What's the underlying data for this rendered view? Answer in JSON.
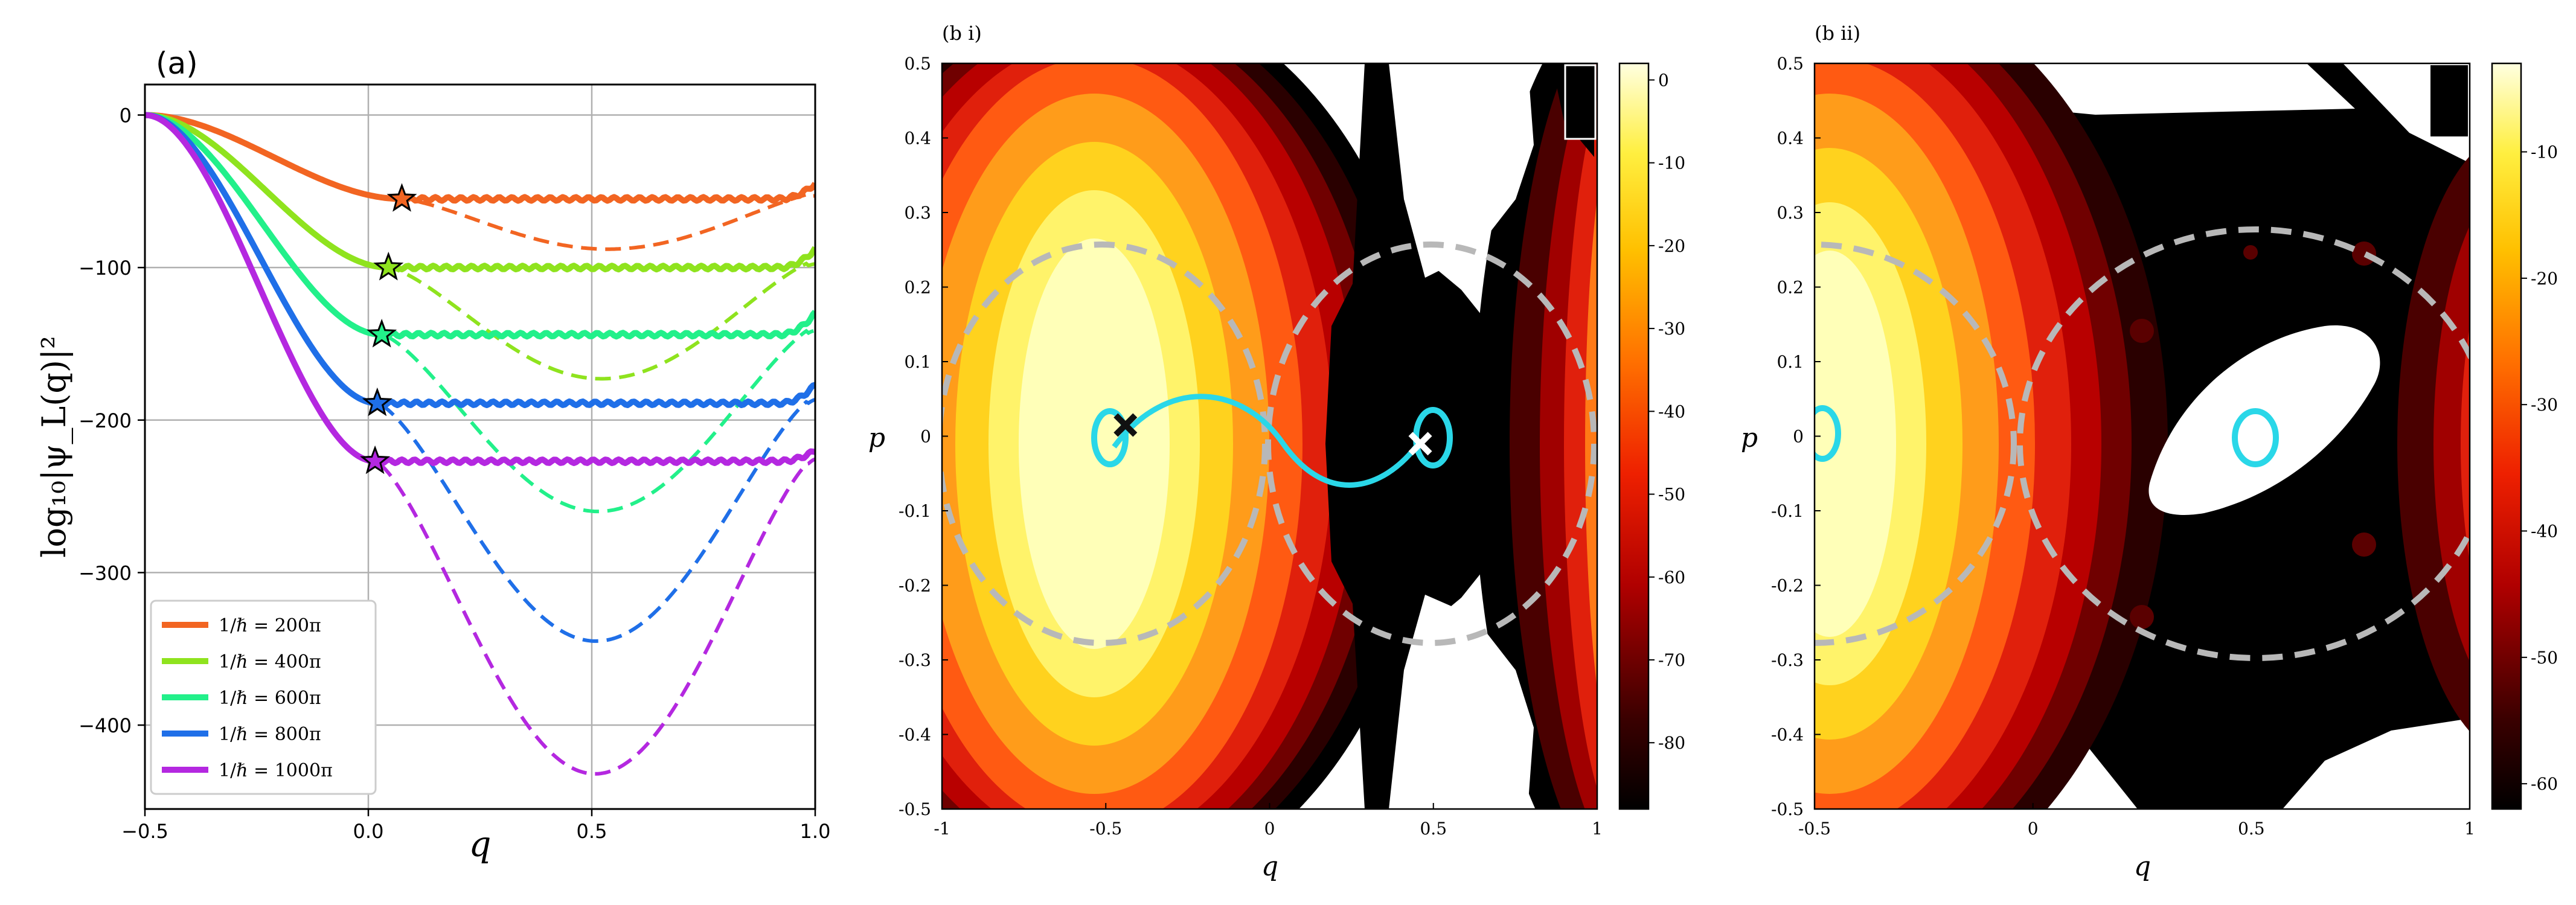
{
  "chart_data": [
    {
      "type": "line",
      "panel_label": "(a)",
      "xlabel": "q",
      "ylabel": "log₁₀|ψ_L(q)|²",
      "xlim": [
        -0.5,
        1.0
      ],
      "ylim": [
        -455,
        20
      ],
      "xticks": [
        -0.5,
        0.0,
        0.5,
        1.0
      ],
      "xtick_labels": [
        "−0.5",
        "0.0",
        "0.5",
        "1.0"
      ],
      "yticks": [
        0,
        -100,
        -200,
        -300,
        -400
      ],
      "ytick_labels": [
        "0",
        "−100",
        "−200",
        "−300",
        "−400"
      ],
      "grid": true,
      "legend_position": "lower-left",
      "series": [
        {
          "name": "1/ℏ = 200π",
          "color": "#f26522",
          "plateau": -55,
          "well_min": -88,
          "star": [
            0.075,
            -55
          ],
          "end_value": -45
        },
        {
          "name": "1/ℏ = 400π",
          "color": "#8fe31e",
          "plateau": -100,
          "well_min": -173,
          "star": [
            0.045,
            -100
          ],
          "end_value": -88
        },
        {
          "name": "1/ℏ = 600π",
          "color": "#22f08a",
          "plateau": -144,
          "well_min": -260,
          "star": [
            0.03,
            -144
          ],
          "end_value": -130
        },
        {
          "name": "1/ℏ = 800π",
          "color": "#1f6fe8",
          "plateau": -189,
          "well_min": -345,
          "star": [
            0.02,
            -189
          ],
          "end_value": -177
        },
        {
          "name": "1/ℏ = 1000π",
          "color": "#b428e0",
          "plateau": -227,
          "well_min": -432,
          "star": [
            0.015,
            -227
          ],
          "end_value": -220
        }
      ]
    },
    {
      "type": "heatmap",
      "panel_label": "(b i)",
      "xlabel": "q",
      "ylabel": "p",
      "xlim": [
        -1,
        1
      ],
      "ylim": [
        -0.5,
        0.5
      ],
      "xtick_labels": [
        "-1",
        "-0.5",
        "0",
        "0.5",
        "1"
      ],
      "ytick_labels": [
        "0.5",
        "0.4",
        "0.3",
        "0.2",
        "0.1",
        "0",
        "-0.1",
        "-0.2",
        "-0.3",
        "-0.4",
        "-0.5"
      ],
      "colorbar_ticks": [
        "0",
        "-10",
        "-20",
        "-30",
        "-40",
        "-50",
        "-60",
        "-70",
        "-80"
      ],
      "colorbar_range": [
        -88,
        2
      ],
      "markers": [
        {
          "label": "black cross",
          "q": -0.44,
          "p": 0.015,
          "color": "#111111"
        },
        {
          "label": "white cross",
          "q": 0.46,
          "p": -0.01,
          "color": "#ffffff"
        }
      ]
    },
    {
      "type": "heatmap",
      "panel_label": "(b ii)",
      "xlabel": "q",
      "ylabel": "p",
      "xlim": [
        -0.5,
        1
      ],
      "ylim": [
        -0.5,
        0.5
      ],
      "xtick_labels": [
        "-0.5",
        "0",
        "0.5",
        "1"
      ],
      "ytick_labels": [
        "0.5",
        "0.4",
        "0.3",
        "0.2",
        "0.1",
        "0",
        "-0.1",
        "-0.2",
        "-0.3",
        "-0.4",
        "-0.5"
      ],
      "colorbar_ticks": [
        "-10",
        "-20",
        "-30",
        "-40",
        "-50",
        "-60"
      ],
      "colorbar_range": [
        -62,
        -3
      ]
    }
  ]
}
